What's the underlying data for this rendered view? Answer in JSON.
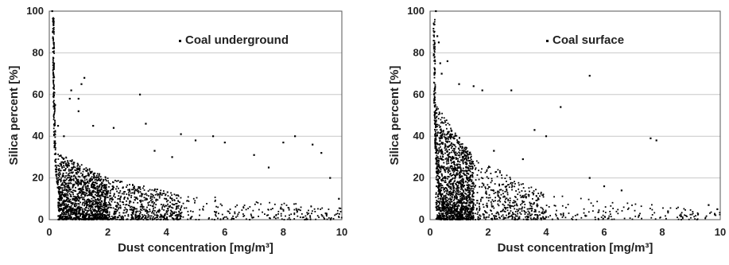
{
  "chart_data": [
    {
      "type": "scatter",
      "legend": "Coal underground",
      "legend_position": "top-right",
      "xlabel": "Dust concentration [mg/m³]",
      "ylabel": "Silica percent [%]",
      "xlim": [
        0,
        10
      ],
      "ylim": [
        0,
        100
      ],
      "xticks": [
        "0",
        "2",
        "4",
        "6",
        "8",
        "10"
      ],
      "yticks": [
        "0",
        "20",
        "40",
        "60",
        "80",
        "100"
      ],
      "grid": "horizontal",
      "color": "#000000",
      "series": [
        {
          "name": "Coal underground",
          "points": [
            [
              0.1,
              100
            ],
            [
              0.12,
              90
            ],
            [
              0.15,
              75
            ],
            [
              0.2,
              55
            ],
            [
              0.3,
              45
            ],
            [
              0.5,
              40
            ],
            [
              0.7,
              58
            ],
            [
              0.75,
              62
            ],
            [
              1.0,
              58
            ],
            [
              1.1,
              65
            ],
            [
              1.2,
              68
            ],
            [
              1.0,
              52
            ],
            [
              1.5,
              45
            ],
            [
              2.2,
              44
            ],
            [
              3.1,
              60
            ],
            [
              3.3,
              46
            ],
            [
              4.5,
              41
            ],
            [
              5.0,
              38
            ],
            [
              5.6,
              40
            ],
            [
              6.0,
              37
            ],
            [
              7.0,
              31
            ],
            [
              7.5,
              25
            ],
            [
              8.0,
              37
            ],
            [
              8.4,
              40
            ],
            [
              9.0,
              36
            ],
            [
              9.3,
              32
            ],
            [
              9.6,
              20
            ],
            [
              9.9,
              10
            ],
            [
              3.6,
              33
            ],
            [
              4.2,
              30
            ]
          ],
          "bulk": [
            {
              "x0": 0.3,
              "x1": 2.0,
              "ymax0": 32,
              "ymax1": 20,
              "n": 1400
            },
            {
              "x0": 2.0,
              "x1": 4.5,
              "ymax0": 20,
              "ymax1": 12,
              "n": 600
            },
            {
              "x0": 4.5,
              "x1": 10.0,
              "ymax0": 12,
              "ymax1": 6,
              "n": 220
            }
          ]
        }
      ]
    },
    {
      "type": "scatter",
      "legend": "Coal surface",
      "legend_position": "top-right",
      "xlabel": "Dust concentration [mg/m³]",
      "ylabel": "Silica percent [%]",
      "xlim": [
        0,
        10
      ],
      "ylim": [
        0,
        100
      ],
      "xticks": [
        "0",
        "2",
        "4",
        "6",
        "8",
        "10"
      ],
      "yticks": [
        "0",
        "20",
        "40",
        "60",
        "80",
        "100"
      ],
      "grid": "horizontal",
      "color": "#000000",
      "series": [
        {
          "name": "Coal surface",
          "points": [
            [
              0.2,
              100
            ],
            [
              0.25,
              88
            ],
            [
              0.3,
              85
            ],
            [
              0.35,
              75
            ],
            [
              0.6,
              76
            ],
            [
              0.4,
              70
            ],
            [
              1.0,
              65
            ],
            [
              1.5,
              64
            ],
            [
              1.8,
              62
            ],
            [
              2.8,
              62
            ],
            [
              4.5,
              54
            ],
            [
              5.5,
              69
            ],
            [
              3.6,
              43
            ],
            [
              4.0,
              40
            ],
            [
              5.5,
              20
            ],
            [
              6.0,
              16
            ],
            [
              7.6,
              39
            ],
            [
              7.8,
              38
            ],
            [
              9.6,
              7
            ],
            [
              9.9,
              5
            ],
            [
              8.2,
              4
            ],
            [
              7.2,
              2
            ],
            [
              6.6,
              14
            ],
            [
              3.2,
              29
            ],
            [
              2.2,
              33
            ]
          ],
          "bulk": [
            {
              "x0": 0.2,
              "x1": 1.5,
              "ymax0": 55,
              "ymax1": 30,
              "n": 1500
            },
            {
              "x0": 1.5,
              "x1": 4.0,
              "ymax0": 30,
              "ymax1": 12,
              "n": 450
            },
            {
              "x0": 4.0,
              "x1": 10.0,
              "ymax0": 12,
              "ymax1": 4,
              "n": 150
            }
          ]
        }
      ]
    }
  ]
}
